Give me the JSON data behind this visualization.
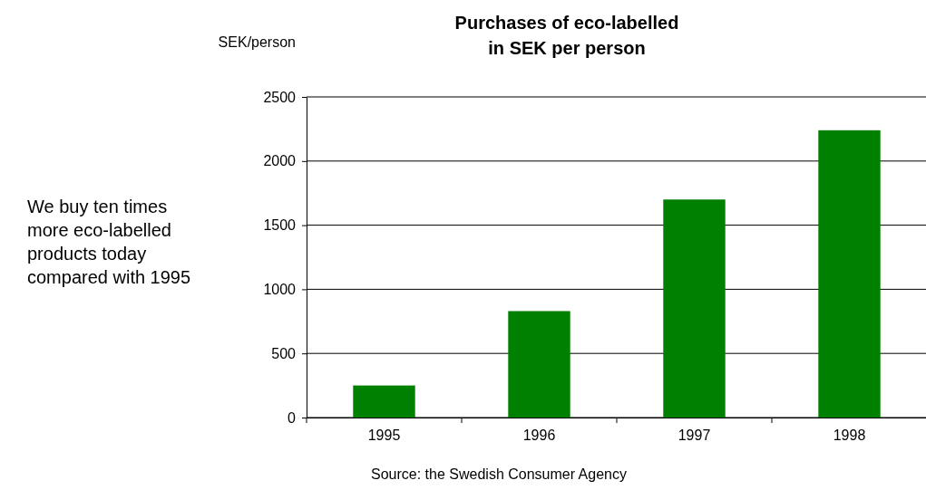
{
  "chart_data": {
    "type": "bar",
    "title": "Purchases of eco-labelled\nin SEK per person",
    "ylabel": "SEK/person",
    "categories": [
      "1995",
      "1996",
      "1997",
      "1998"
    ],
    "values": [
      250,
      830,
      1700,
      2240
    ],
    "color": "#008000",
    "ylim": [
      0,
      2500
    ],
    "yticks": [
      0,
      500,
      1000,
      1500,
      2000,
      2500
    ],
    "grid": "y",
    "annotations": [
      "We buy ten times more eco-labelled products today compared with 1995",
      "Source: the Swedish Consumer Agency"
    ]
  }
}
